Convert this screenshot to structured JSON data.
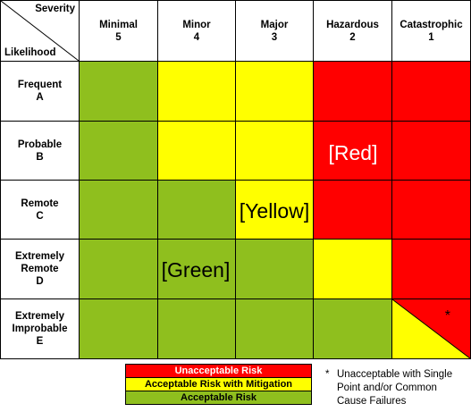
{
  "corner": {
    "severity_label": "Severity",
    "likelihood_label": "Likelihood"
  },
  "severity_columns": [
    {
      "name": "Minimal",
      "level": "5"
    },
    {
      "name": "Minor",
      "level": "4"
    },
    {
      "name": "Major",
      "level": "3"
    },
    {
      "name": "Hazardous",
      "level": "2"
    },
    {
      "name": "Catastrophic",
      "level": "1"
    }
  ],
  "likelihood_rows": [
    {
      "name": "Frequent",
      "level": "A",
      "cells": [
        "green",
        "yellow",
        "yellow",
        "red",
        "red"
      ]
    },
    {
      "name": "Probable",
      "level": "B",
      "cells": [
        "green",
        "yellow",
        "yellow",
        "red",
        "red"
      ]
    },
    {
      "name": "Remote",
      "level": "C",
      "cells": [
        "green",
        "green",
        "yellow",
        "red",
        "red"
      ]
    },
    {
      "name": "Extremely\nRemote",
      "level": "D",
      "cells": [
        "green",
        "green",
        "green",
        "yellow",
        "red"
      ]
    },
    {
      "name": "Extremely\nImprobable",
      "level": "E",
      "cells": [
        "green",
        "green",
        "green",
        "green",
        "split"
      ]
    }
  ],
  "cell_labels": {
    "red": "[Red]",
    "yellow": "[Yellow]",
    "green": "[Green]"
  },
  "asterisk": "*",
  "legend": [
    {
      "label": "Unacceptable Risk",
      "color": "red"
    },
    {
      "label": "Acceptable Risk with Mitigation",
      "color": "yellow"
    },
    {
      "label": "Acceptable Risk",
      "color": "green"
    }
  ],
  "footnote": {
    "symbol": "*",
    "text": "Unacceptable with Single\nPoint and/or Common\nCause Failures"
  },
  "colors": {
    "red": "#ff0000",
    "yellow": "#ffff00",
    "green": "#8fbf1e"
  }
}
